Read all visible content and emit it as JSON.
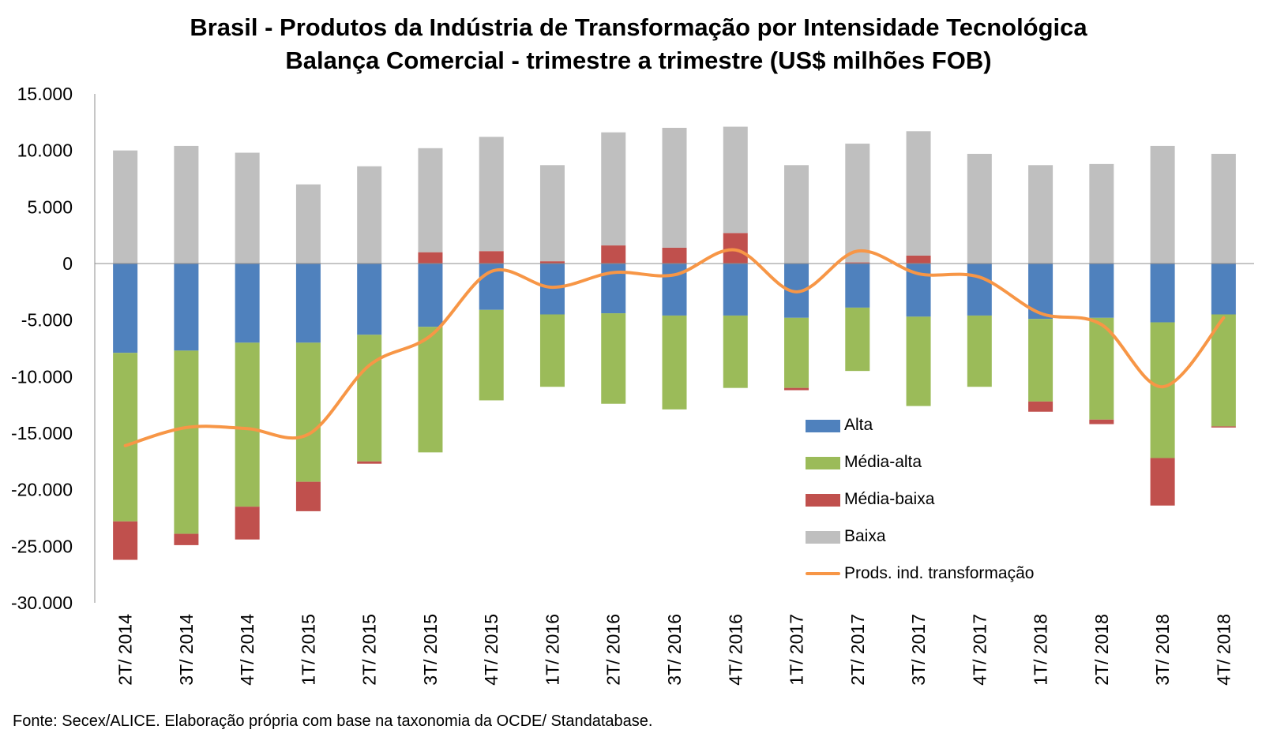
{
  "title_lines": [
    "Brasil - Produtos da Indústria de Transformação por Intensidade Tecnológica",
    "Balança Comercial - trimestre a trimestre (US$ milhões FOB)"
  ],
  "source_note": "Fonte: Secex/ALICE. Elaboração própria com base na taxonomia da OCDE/ Standatabase.",
  "colors": {
    "alta": "#4f81bd",
    "media_alta": "#9bbb59",
    "media_baixa": "#c0504d",
    "baixa": "#bfbfbf",
    "line": "#f79646"
  },
  "chart_data": {
    "type": "bar",
    "stacked": true,
    "title": "Brasil - Produtos da Indústria de Transformação por Intensidade Tecnológica / Balança Comercial - trimestre a trimestre (US$ milhões FOB)",
    "categories": [
      "2T/ 2014",
      "3T/ 2014",
      "4T/ 2014",
      "1T/ 2015",
      "2T/ 2015",
      "3T/ 2015",
      "4T/ 2015",
      "1T/ 2016",
      "2T/ 2016",
      "3T/ 2016",
      "4T/ 2016",
      "1T/ 2017",
      "2T/ 2017",
      "3T/ 2017",
      "4T/ 2017",
      "1T/ 2018",
      "2T/ 2018",
      "3T/ 2018",
      "4T/ 2018"
    ],
    "yticks": [
      "15.000",
      "10.000",
      "5.000",
      "0",
      "-5.000",
      "-10.000",
      "-15.000",
      "-20.000",
      "-25.000",
      "-30.000"
    ],
    "ylim": [
      -30000,
      15000
    ],
    "ystep": 5000,
    "grid": false,
    "legend_position": "right",
    "series": [
      {
        "name": "Alta",
        "color_key": "alta",
        "values": [
          -7900,
          -7700,
          -7000,
          -7000,
          -6300,
          -5600,
          -4100,
          -4500,
          -4400,
          -4600,
          -4600,
          -4800,
          -3900,
          -4700,
          -4600,
          -4900,
          -4800,
          -5200,
          -4500
        ]
      },
      {
        "name": "Média-alta",
        "color_key": "media_alta",
        "values": [
          -14900,
          -16200,
          -14500,
          -12300,
          -11200,
          -11100,
          -8000,
          -6400,
          -8000,
          -8300,
          -6400,
          -6200,
          -5600,
          -7900,
          -6300,
          -7300,
          -9000,
          -12000,
          -9900
        ]
      },
      {
        "name": "Média-baixa",
        "color_key": "media_baixa",
        "values": [
          -3400,
          -1000,
          -2900,
          -2600,
          -200,
          1000,
          1100,
          200,
          1600,
          1400,
          2700,
          -200,
          100,
          700,
          0,
          -900,
          -400,
          -4200,
          -100
        ]
      },
      {
        "name": "Baixa",
        "color_key": "baixa",
        "values": [
          10000,
          10400,
          9800,
          7000,
          8600,
          9200,
          10100,
          8500,
          10000,
          10600,
          9400,
          8700,
          10500,
          11000,
          9700,
          8700,
          8800,
          10400,
          9700
        ]
      }
    ],
    "line_series": {
      "name": "Prods. ind. transformação",
      "color_key": "line",
      "values": [
        -16100,
        -14500,
        -14600,
        -15100,
        -9000,
        -6400,
        -700,
        -2100,
        -800,
        -1000,
        1200,
        -2500,
        1100,
        -900,
        -1200,
        -4400,
        -5400,
        -10900,
        -4800
      ]
    }
  }
}
